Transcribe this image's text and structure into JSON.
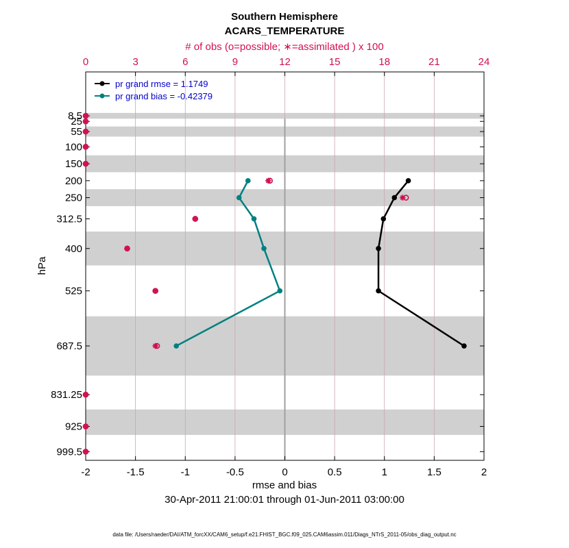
{
  "colors": {
    "rmse": "#000000",
    "bias": "#008080",
    "obs": "#d0104f",
    "band": "#d0d0d0",
    "legend_text": "#0000cc"
  },
  "chart_data": {
    "type": "line",
    "title": "Southern Hemisphere",
    "subtitle": "ACARS_TEMPERATURE",
    "top_axis_label": "# of obs (o=possible; ∗=assimilated ) x 100",
    "xlabel": "rmse and bias",
    "ylabel": "hPa",
    "date_range": "30-Apr-2011 21:00:01 through 01-Jun-2011 03:00:00",
    "footer": "data file: /Users/raeder/DAI/ATM_forcXX/CAM6_setup/f.e21.FHIST_BGC.f09_025.CAM6assim.011/Diags_NTrS_2011-05/obs_diag_output.nc",
    "xlim": [
      -2,
      2
    ],
    "x_ticks": [
      "-2",
      "-1.5",
      "-1",
      "-0.5",
      "0",
      "0.5",
      "1",
      "1.5",
      "2"
    ],
    "x_tick_values": [
      -2,
      -1.5,
      -1,
      -0.5,
      0,
      0.5,
      1,
      1.5,
      2
    ],
    "top_xlim": [
      0,
      24
    ],
    "top_ticks": [
      "0",
      "3",
      "6",
      "9",
      "12",
      "15",
      "18",
      "21",
      "24"
    ],
    "top_tick_values": [
      0,
      3,
      6,
      9,
      12,
      15,
      18,
      21,
      24
    ],
    "levels": [
      "8.5",
      "25",
      "55",
      "100",
      "150",
      "200",
      "250",
      "312.5",
      "400",
      "525",
      "687.5",
      "831.25",
      "925",
      "999.5"
    ],
    "level_values": [
      8.5,
      25,
      55,
      100,
      150,
      200,
      250,
      312.5,
      400,
      525,
      687.5,
      831.25,
      925,
      999.5
    ],
    "ylim": [
      1025,
      -121
    ],
    "bands": [
      [
        0,
        17
      ],
      [
        40,
        70
      ],
      [
        125,
        175
      ],
      [
        225,
        275
      ],
      [
        350,
        450
      ],
      [
        600,
        775
      ],
      [
        875,
        950
      ]
    ],
    "series": [
      {
        "name": "pr grand rmse = 1.1749",
        "key": "rmse",
        "levels": [
          200,
          250,
          312.5,
          400,
          525,
          687.5
        ],
        "values": [
          1.24,
          1.1,
          0.99,
          0.94,
          0.94,
          1.8
        ]
      },
      {
        "name": "pr grand bias = -0.42379",
        "key": "bias",
        "levels": [
          200,
          250,
          312.5,
          400,
          525,
          687.5
        ],
        "values": [
          -0.37,
          -0.46,
          -0.31,
          -0.21,
          -0.05,
          -1.09
        ]
      }
    ],
    "obs_counts": {
      "levels": [
        8.5,
        25,
        55,
        100,
        150,
        200,
        250,
        312.5,
        400,
        525,
        687.5,
        831.25,
        925,
        999.5
      ],
      "possible": [
        0,
        0,
        0,
        0,
        0,
        11.1,
        19.3,
        6.6,
        2.5,
        4.2,
        4.3,
        0,
        0,
        0
      ],
      "assimilated": [
        0,
        0,
        0,
        0,
        0,
        11.0,
        19.1,
        6.6,
        2.5,
        4.2,
        4.2,
        0,
        0,
        0
      ]
    }
  }
}
